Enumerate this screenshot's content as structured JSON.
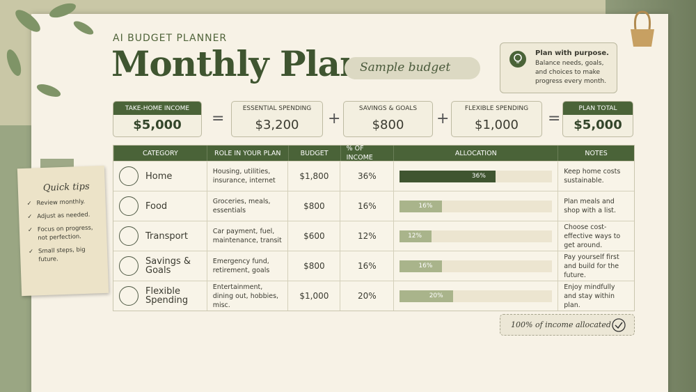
{
  "header": {
    "eyebrow": "AI BUDGET PLANNER",
    "title": "Monthly Plan",
    "tag": "Sample budget"
  },
  "purpose": {
    "title": "Plan with purpose.",
    "text": "Balance needs, goals, and choices to make progress every month."
  },
  "summary": {
    "items": [
      {
        "label": "TAKE-HOME INCOME",
        "value": "$5,000"
      },
      {
        "label": "ESSENTIAL SPENDING",
        "value": "$3,200"
      },
      {
        "label": "SAVINGS & GOALS",
        "value": "$800"
      },
      {
        "label": "FLEXIBLE SPENDING",
        "value": "$1,000"
      },
      {
        "label": "PLAN TOTAL",
        "value": "$5,000"
      }
    ],
    "operators": [
      "=",
      "+",
      "+",
      "="
    ]
  },
  "table": {
    "columns": [
      "CATEGORY",
      "ROLE IN YOUR PLAN",
      "BUDGET",
      "% OF INCOME",
      "ALLOCATION",
      "NOTES"
    ],
    "rows": [
      {
        "category": "Home",
        "role": "Housing, utilities, insurance, internet",
        "budget": "$1,800",
        "percent": 36,
        "percent_label": "36%",
        "note": "Keep home costs sustainable."
      },
      {
        "category": "Food",
        "role": "Groceries, meals, essentials",
        "budget": "$800",
        "percent": 16,
        "percent_label": "16%",
        "note": "Plan meals and shop with a list."
      },
      {
        "category": "Transport",
        "role": "Car payment, fuel, maintenance, transit",
        "budget": "$600",
        "percent": 12,
        "percent_label": "12%",
        "note": "Choose cost-effective ways to get around."
      },
      {
        "category": "Savings & Goals",
        "role": "Emergency fund, retirement, goals",
        "budget": "$800",
        "percent": 16,
        "percent_label": "16%",
        "note": "Pay yourself first and build for the future."
      },
      {
        "category": "Flexible Spending",
        "role": "Entertainment, dining out, hobbies, misc.",
        "budget": "$1,000",
        "percent": 20,
        "percent_label": "20%",
        "note": "Enjoy mindfully and stay within plan."
      }
    ]
  },
  "tips": {
    "title": "Quick tips",
    "items": [
      "Review monthly.",
      "Adjust as needed.",
      "Focus on progress, not perfection.",
      "Small steps, big future."
    ]
  },
  "footer": "100% of income allocated"
}
